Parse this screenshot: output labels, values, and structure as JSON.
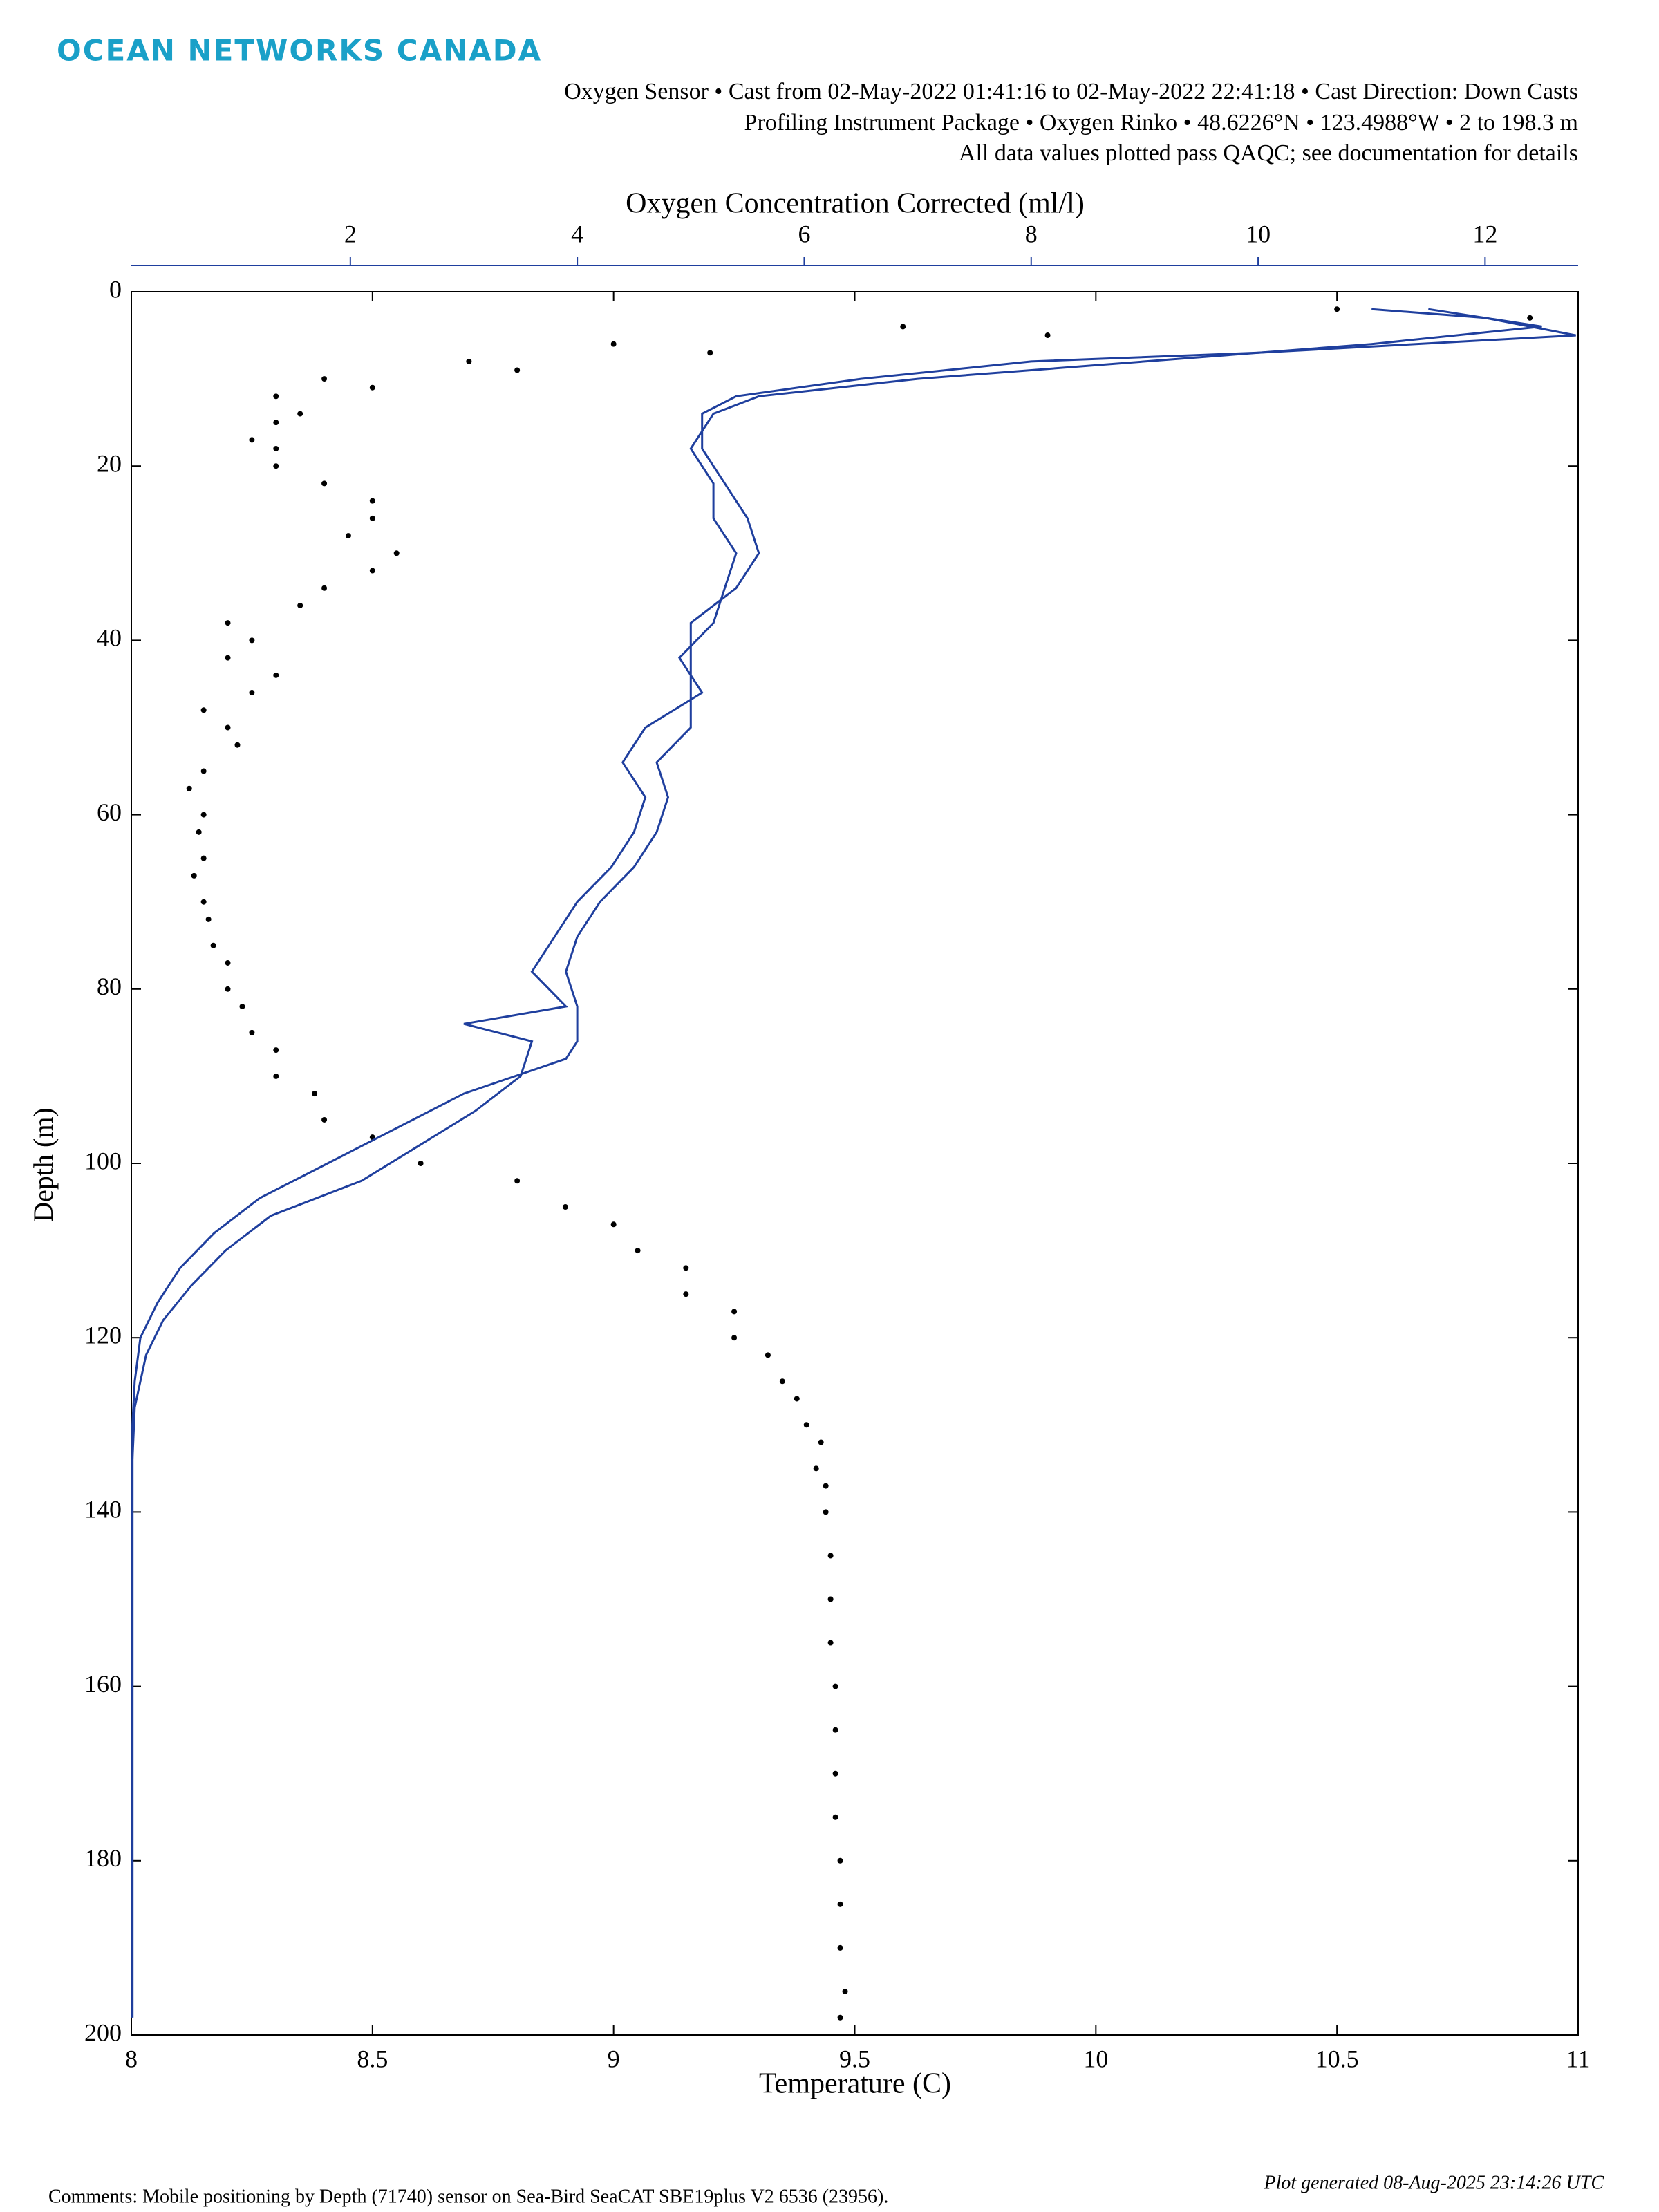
{
  "header": {
    "logo": "OCEAN NETWORKS CANADA",
    "subtitle": [
      "Oxygen Sensor • Cast from 02-May-2022 01:41:16 to 02-May-2022 22:41:18 • Cast Direction: Down Casts",
      "Profiling Instrument Package • Oxygen Rinko • 48.6226°N • 123.4988°W • 2 to 198.3 m",
      "All data values plotted pass QAQC; see documentation for details"
    ]
  },
  "chart_data": {
    "type": "scatter",
    "xlabel": "Temperature (C)",
    "ylabel": "Depth (m)",
    "x2label": "Oxygen Concentration Corrected (ml/l)",
    "xlim": [
      8,
      11
    ],
    "xticks": [
      8,
      8.5,
      9,
      9.5,
      10,
      10.5,
      11
    ],
    "x2lim": [
      0.07,
      12.82
    ],
    "x2ticks": [
      2,
      4,
      6,
      8,
      10,
      12
    ],
    "x2color": "#1f3f9e",
    "ylim": [
      0,
      200
    ],
    "yticks": [
      0,
      20,
      40,
      60,
      80,
      100,
      120,
      140,
      160,
      180,
      200
    ],
    "yreverse": true,
    "series": [
      {
        "type": "scatter",
        "color": "#000000",
        "depth": [
          2,
          4,
          6,
          8,
          10,
          12,
          15,
          18,
          22,
          26,
          30,
          34,
          38,
          42,
          46,
          50,
          55,
          60,
          65,
          70,
          75,
          80,
          85,
          90,
          95,
          100,
          105,
          110,
          115,
          120,
          125,
          130,
          135,
          140,
          150,
          160,
          170,
          180,
          190,
          198
        ],
        "values": [
          10.5,
          9.6,
          9.0,
          8.7,
          8.4,
          8.3,
          8.3,
          8.3,
          8.4,
          8.5,
          8.55,
          8.4,
          8.2,
          8.2,
          8.25,
          8.2,
          8.15,
          8.15,
          8.15,
          8.15,
          8.17,
          8.2,
          8.25,
          8.3,
          8.4,
          8.6,
          8.9,
          9.05,
          9.15,
          9.25,
          9.35,
          9.4,
          9.42,
          9.44,
          9.45,
          9.46,
          9.46,
          9.47,
          9.47,
          9.47
        ]
      },
      {
        "type": "scatter",
        "color": "#000000",
        "depth": [
          3,
          5,
          7,
          9,
          11,
          14,
          17,
          20,
          24,
          28,
          32,
          36,
          40,
          44,
          48,
          52,
          57,
          62,
          67,
          72,
          77,
          82,
          87,
          92,
          97,
          102,
          107,
          112,
          117,
          122,
          127,
          132,
          137,
          145,
          155,
          165,
          175,
          185,
          195
        ],
        "values": [
          10.9,
          9.9,
          9.2,
          8.8,
          8.5,
          8.35,
          8.25,
          8.3,
          8.5,
          8.45,
          8.5,
          8.35,
          8.25,
          8.3,
          8.15,
          8.22,
          8.12,
          8.14,
          8.13,
          8.16,
          8.2,
          8.23,
          8.3,
          8.38,
          8.5,
          8.8,
          9.0,
          9.15,
          9.25,
          9.32,
          9.38,
          9.43,
          9.44,
          9.45,
          9.45,
          9.46,
          9.46,
          9.47,
          9.48
        ]
      },
      {
        "type": "line",
        "axis": "x2",
        "color": "#1f3f9e",
        "depth": [
          2,
          3,
          5,
          7,
          8,
          10,
          12,
          14,
          18,
          22,
          26,
          30,
          34,
          38,
          42,
          46,
          50,
          54,
          58,
          62,
          66,
          70,
          74,
          78,
          82,
          86,
          88,
          92,
          96,
          100,
          104,
          108,
          112,
          116,
          120,
          125,
          130,
          140,
          160,
          180,
          198
        ],
        "values": [
          11.0,
          12.0,
          12.8,
          10.0,
          8.0,
          6.5,
          5.4,
          5.1,
          5.1,
          5.3,
          5.5,
          5.6,
          5.4,
          5.0,
          5.0,
          5.0,
          5.0,
          4.7,
          4.8,
          4.7,
          4.5,
          4.2,
          4.0,
          3.9,
          4.0,
          4.0,
          3.9,
          3.0,
          2.4,
          1.8,
          1.2,
          0.8,
          0.5,
          0.3,
          0.15,
          0.1,
          0.08,
          0.08,
          0.08,
          0.08,
          0.08
        ]
      },
      {
        "type": "line",
        "axis": "x2",
        "color": "#1f3f9e",
        "depth": [
          2,
          4,
          6,
          8,
          10,
          12,
          14,
          18,
          22,
          26,
          30,
          34,
          38,
          42,
          46,
          50,
          54,
          58,
          62,
          66,
          70,
          74,
          78,
          82,
          84,
          86,
          90,
          94,
          98,
          102,
          106,
          110,
          114,
          118,
          122,
          128,
          134,
          150,
          170,
          190,
          198
        ],
        "values": [
          11.5,
          12.5,
          11.0,
          9.0,
          7.0,
          5.6,
          5.2,
          5.0,
          5.2,
          5.2,
          5.4,
          5.3,
          5.2,
          4.9,
          5.1,
          4.6,
          4.4,
          4.6,
          4.5,
          4.3,
          4.0,
          3.8,
          3.6,
          3.9,
          3.0,
          3.6,
          3.5,
          3.1,
          2.6,
          2.1,
          1.3,
          0.9,
          0.6,
          0.35,
          0.2,
          0.1,
          0.08,
          0.08,
          0.08,
          0.08,
          0.08
        ]
      }
    ]
  },
  "footer": {
    "comments": "Comments: Mobile positioning by Depth (71740) sensor on Sea-Bird SeaCAT SBE19plus V2 6536 (23956).",
    "generated": "Plot generated 08-Aug-2025 23:14:26 UTC"
  }
}
